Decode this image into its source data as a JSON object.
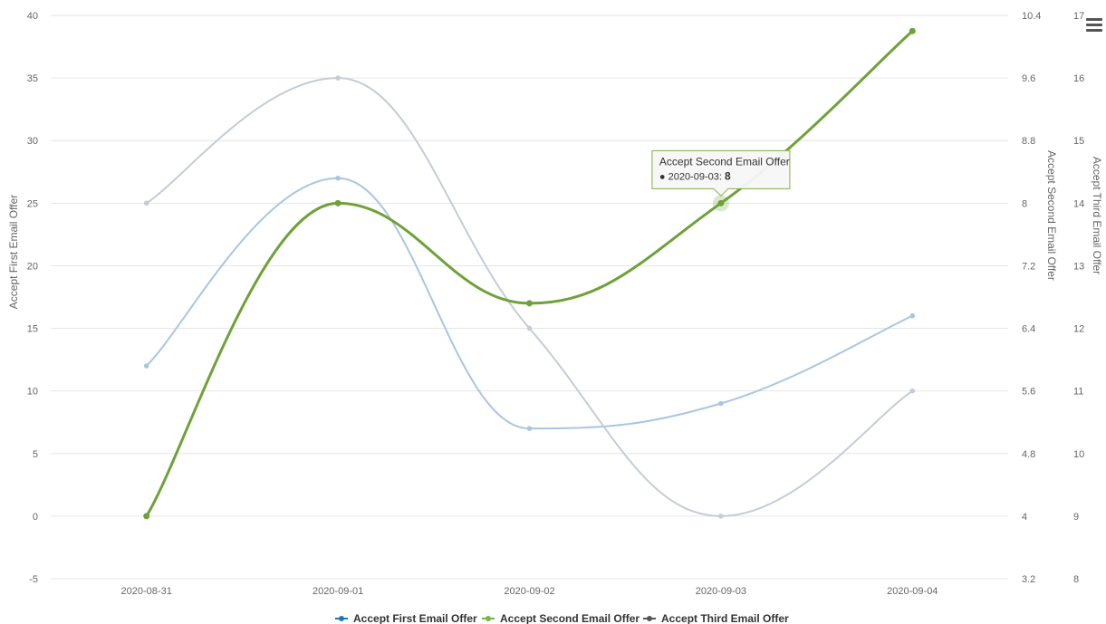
{
  "chart_data": {
    "type": "line",
    "categories": [
      "2020-08-31",
      "2020-09-01",
      "2020-09-02",
      "2020-09-03",
      "2020-09-04"
    ],
    "series": [
      {
        "name": "Accept First Email Offer",
        "axis": "left",
        "values": [
          12,
          27,
          7,
          9,
          16
        ],
        "color": "#a9c6e0",
        "legend_color": "#1f77b4",
        "active": false
      },
      {
        "name": "Accept Second Email Offer",
        "axis": "right1",
        "values": [
          4,
          8,
          6.72,
          8,
          10.2
        ],
        "color": "#6ea238",
        "legend_color": "#7cb342",
        "active": true
      },
      {
        "name": "Accept Third Email Offer",
        "axis": "right2",
        "values": [
          14,
          16,
          12,
          9,
          11
        ],
        "color": "#c4ccd6",
        "legend_color": "#555555",
        "active": false
      }
    ],
    "axes": {
      "left": {
        "title": "Accept First Email Offer",
        "min": -5,
        "max": 40,
        "ticks": [
          -5,
          0,
          5,
          10,
          15,
          20,
          25,
          30,
          35,
          40
        ]
      },
      "right1": {
        "title": "Accept Second Email Offer",
        "min": 3.2,
        "max": 10.4,
        "ticks": [
          "3.2",
          "4",
          "4.8",
          "5.6",
          "6.4",
          "7.2",
          "8",
          "8.8",
          "9.6",
          "10.4"
        ]
      },
      "right2": {
        "title": "Accept Third Email Offer",
        "min": 8,
        "max": 17,
        "ticks": [
          8,
          9,
          10,
          11,
          12,
          13,
          14,
          15,
          16,
          17
        ]
      }
    },
    "grid": true,
    "legend_position": "bottom-center",
    "tooltip": {
      "series_index": 1,
      "point_index": 3,
      "title": "Accept Second Email Offer",
      "label": "2020-09-03",
      "value": "8"
    }
  },
  "menu_icon": "hamburger-menu-icon"
}
